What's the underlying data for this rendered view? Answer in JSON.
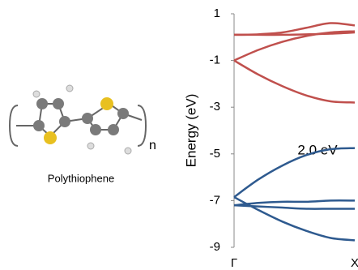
{
  "chart_data": {
    "type": "line",
    "y_label": "Energy (eV)",
    "annotations": [
      "2.0 eV"
    ],
    "categories": [
      "Γ",
      null,
      null,
      null,
      null,
      "X"
    ],
    "ylim": [
      -9,
      1
    ],
    "yticks": [
      1,
      -1,
      -3,
      -5,
      -7,
      -9
    ],
    "series": [
      {
        "color": "#c0504d",
        "values": [
          0.1,
          0.12,
          0.2,
          0.4,
          0.6,
          0.5
        ]
      },
      {
        "color": "#c0504d",
        "values": [
          0.1,
          0.1,
          0.1,
          0.12,
          0.15,
          0.2
        ]
      },
      {
        "color": "#c0504d",
        "values": [
          -1,
          -0.55,
          -0.2,
          0.05,
          0.2,
          0.25
        ]
      },
      {
        "color": "#c0504d",
        "values": [
          -1,
          -1.6,
          -2.1,
          -2.5,
          -2.75,
          -2.8
        ]
      },
      {
        "color": "#2e5a8f",
        "values": [
          -6.85,
          -6.1,
          -5.5,
          -5.05,
          -4.8,
          -4.75
        ]
      },
      {
        "color": "#2e5a8f",
        "values": [
          -6.85,
          -7.4,
          -7.9,
          -8.3,
          -8.6,
          -8.7
        ]
      },
      {
        "color": "#2e5a8f",
        "values": [
          -7.2,
          -7.1,
          -7.05,
          -7.05,
          -7.0,
          -7.0
        ]
      },
      {
        "color": "#2e5a8f",
        "values": [
          -7.2,
          -7.25,
          -7.3,
          -7.35,
          -7.35,
          -7.35
        ]
      }
    ]
  },
  "molecule": {
    "label": "Polythiophene",
    "repeat": "n"
  }
}
